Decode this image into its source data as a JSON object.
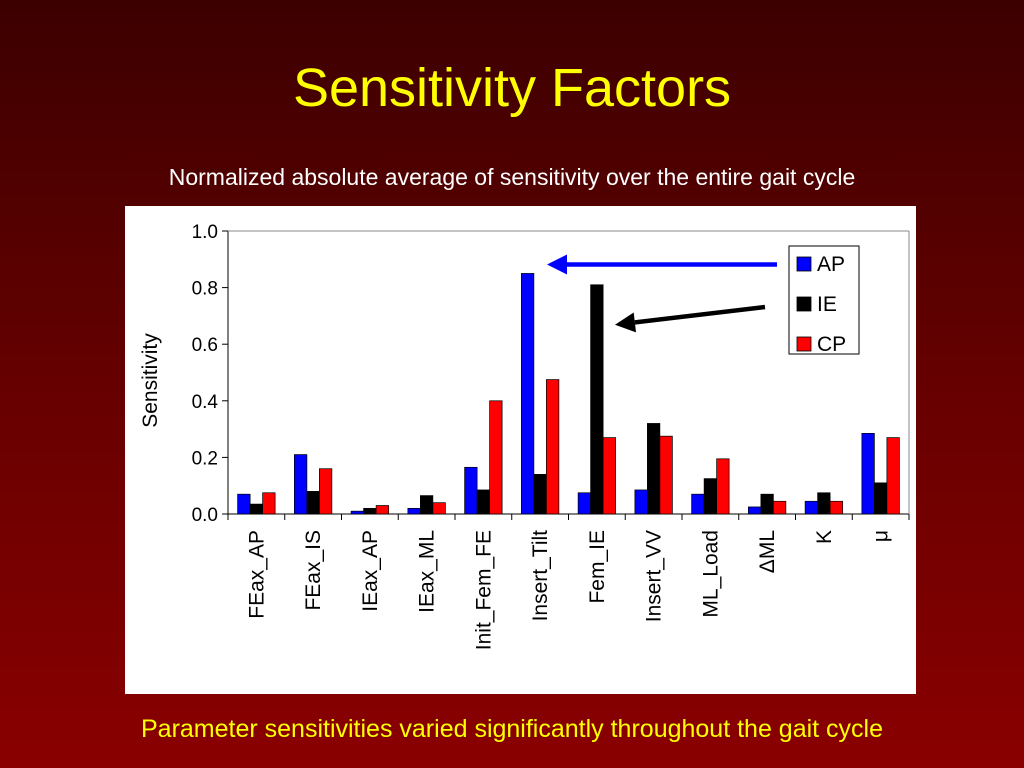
{
  "slide": {
    "title": "Sensitivity Factors",
    "subtitle": "Normalized absolute average of sensitivity over the entire gait cycle",
    "caption": "Parameter sensitivities varied significantly throughout the gait cycle"
  },
  "colors": {
    "background": "#5a0000",
    "title": "#ffff00",
    "AP": "#0000ff",
    "IE": "#000000",
    "CP": "#ff0000",
    "arrow_blue": "#0000ff",
    "arrow_black": "#000000"
  },
  "chart_data": {
    "type": "bar",
    "title": "",
    "xlabel": "",
    "ylabel": "Sensitivity",
    "ylim": [
      0,
      1.0
    ],
    "yticks": [
      "0.0",
      "0.2",
      "0.4",
      "0.6",
      "0.8",
      "1.0"
    ],
    "grid": false,
    "legend_position": "top-right",
    "categories": [
      "FEax_AP",
      "FEax_IS",
      "IEax_AP",
      "IEax_ML",
      "Init_Fem_FE",
      "Insert_Tilt",
      "Fem_IE",
      "Insert_VV",
      "ML_Load",
      "ΔML",
      "K",
      "μ"
    ],
    "series": [
      {
        "name": "AP",
        "color": "#0000ff",
        "values": [
          0.07,
          0.21,
          0.01,
          0.02,
          0.165,
          0.85,
          0.075,
          0.085,
          0.07,
          0.025,
          0.045,
          0.285
        ]
      },
      {
        "name": "IE",
        "color": "#000000",
        "values": [
          0.035,
          0.08,
          0.02,
          0.065,
          0.085,
          0.14,
          0.81,
          0.32,
          0.125,
          0.07,
          0.075,
          0.11
        ]
      },
      {
        "name": "CP",
        "color": "#ff0000",
        "values": [
          0.075,
          0.16,
          0.03,
          0.04,
          0.4,
          0.475,
          0.27,
          0.275,
          0.195,
          0.045,
          0.045,
          0.27
        ]
      }
    ],
    "annotations": [
      {
        "type": "arrow",
        "color": "#0000ff",
        "points_to": "Insert_Tilt AP"
      },
      {
        "type": "arrow",
        "color": "#000000",
        "points_to": "Fem_IE IE"
      }
    ]
  }
}
